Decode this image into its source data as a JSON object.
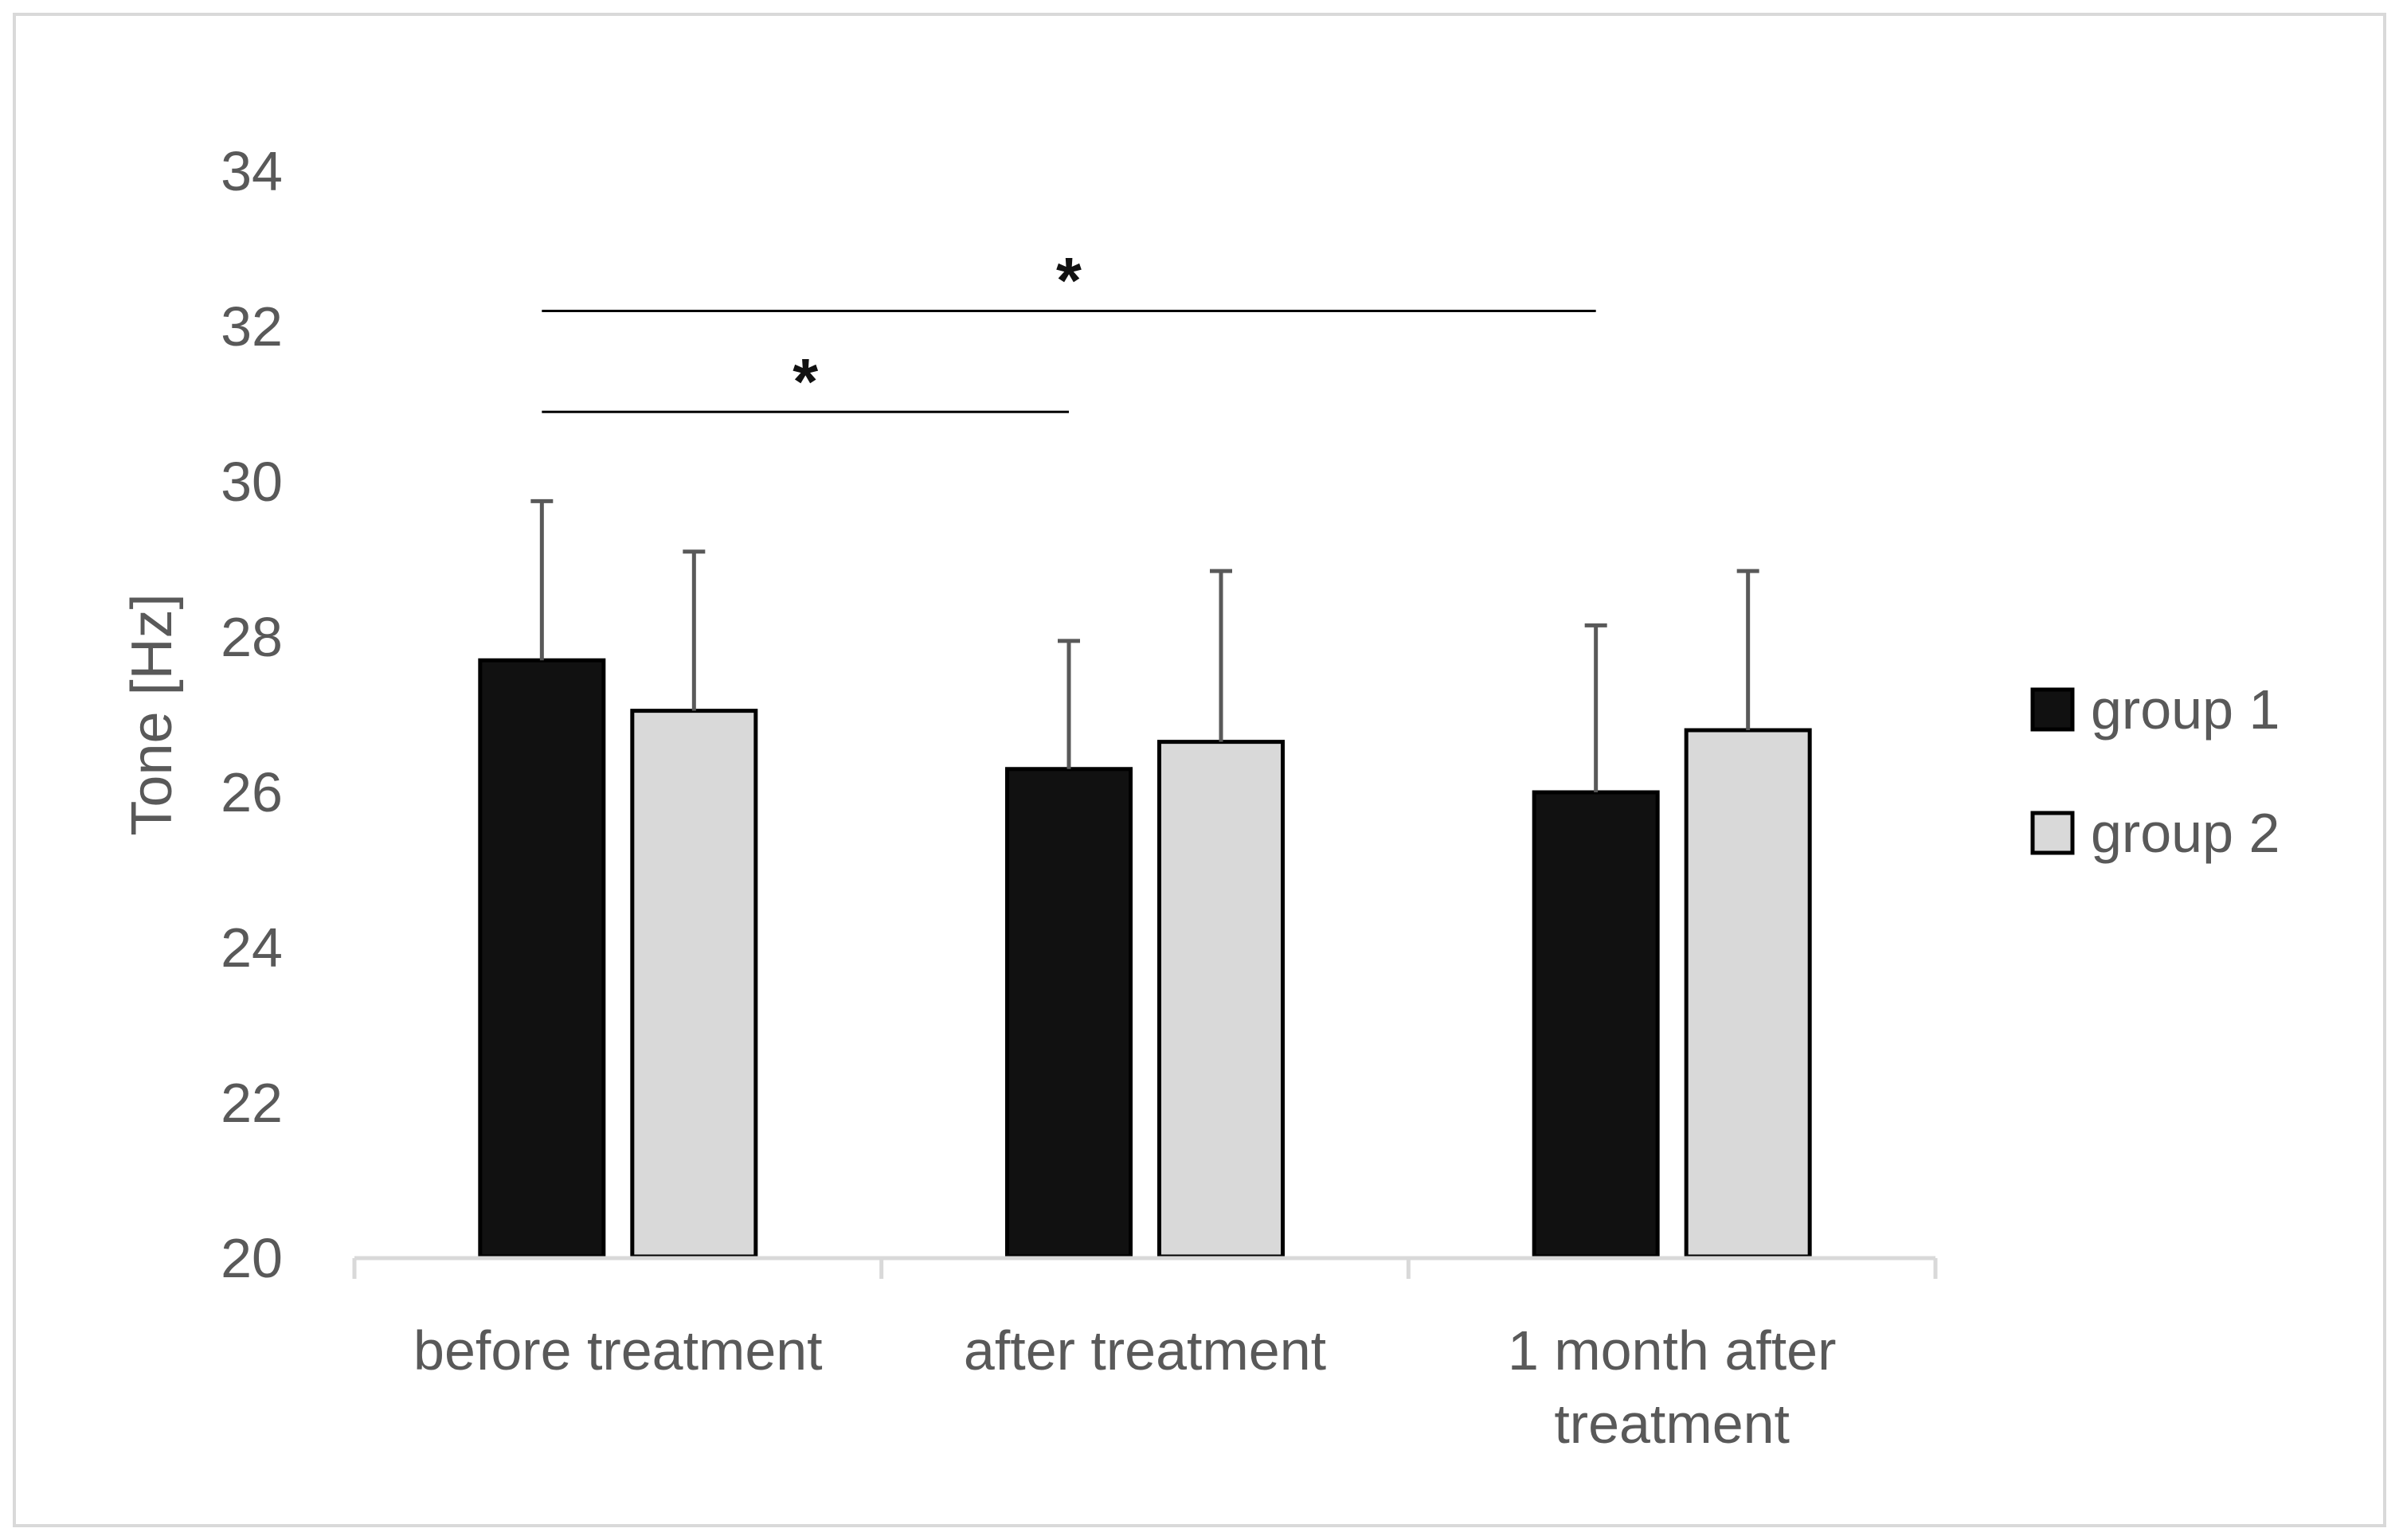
{
  "chart_data": {
    "type": "bar",
    "title": "",
    "xlabel": "",
    "ylabel": "Tone [Hz]",
    "ylim": [
      20,
      34
    ],
    "yticks": [
      20,
      22,
      24,
      26,
      28,
      30,
      32,
      34
    ],
    "categories": [
      [
        "before treatment"
      ],
      [
        "after treatment"
      ],
      [
        "1 month after",
        "treatment"
      ]
    ],
    "series": [
      {
        "name": "group 1",
        "color": "#111111",
        "values": [
          27.7,
          26.3,
          26.0
        ],
        "errors": [
          2.05,
          1.65,
          2.15
        ]
      },
      {
        "name": "group 2",
        "color": "#d9d9d9",
        "values": [
          27.05,
          26.65,
          26.8
        ],
        "errors": [
          2.05,
          2.2,
          2.05
        ]
      }
    ],
    "significance": [
      {
        "label": "*",
        "from_category": 0,
        "to_category": 1,
        "level": 30.9
      },
      {
        "label": "*",
        "from_category": 0,
        "to_category": 2,
        "level": 32.2
      }
    ],
    "legend_position": "right"
  }
}
